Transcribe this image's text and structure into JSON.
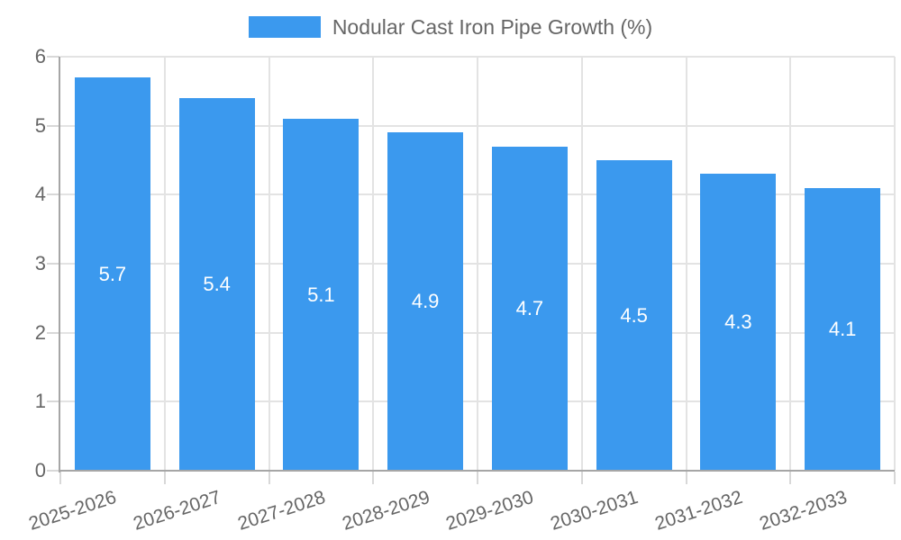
{
  "chart_data": {
    "type": "bar",
    "title": "",
    "legend": {
      "label": "Nodular Cast Iron Pipe Growth (%)",
      "position": "top"
    },
    "categories": [
      "2025-2026",
      "2026-2027",
      "2027-2028",
      "2028-2029",
      "2029-2030",
      "2030-2031",
      "2031-2032",
      "2032-2033"
    ],
    "series": [
      {
        "name": "Nodular Cast Iron Pipe Growth (%)",
        "values": [
          5.7,
          5.4,
          5.1,
          4.9,
          4.7,
          4.5,
          4.3,
          4.1
        ]
      }
    ],
    "value_labels": [
      "5.7",
      "5.4",
      "5.1",
      "4.9",
      "4.7",
      "4.5",
      "4.3",
      "4.1"
    ],
    "xlabel": "",
    "ylabel": "",
    "ylim": [
      0,
      6
    ],
    "yticks": [
      0,
      1,
      2,
      3,
      4,
      5,
      6
    ],
    "grid": true,
    "legend_position": "top-center",
    "colors": {
      "bar": "#3B99EE",
      "grid": "#E3E3E3",
      "axis_line": "#A6A6A6",
      "tick_mark": "#D8D8D8",
      "axis_text": "#666666",
      "value_label_text": "#FFFFFF"
    }
  }
}
